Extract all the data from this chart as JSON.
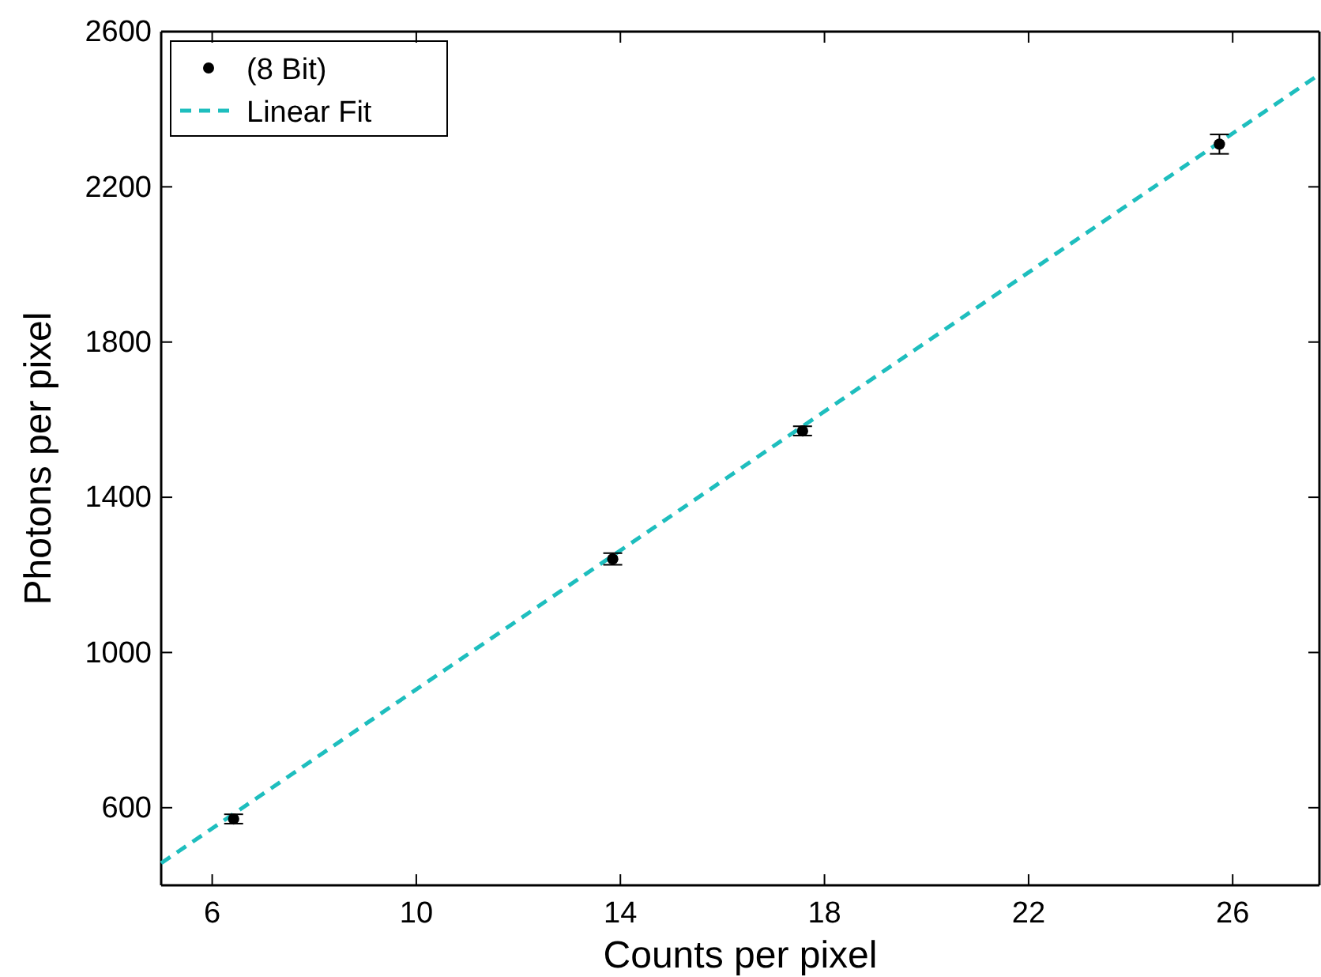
{
  "chart_data": {
    "type": "scatter",
    "xlabel": "Counts per pixel",
    "ylabel": "Photons per pixel",
    "xlim": [
      5,
      27.7
    ],
    "ylim": [
      400,
      2600
    ],
    "xticks": [
      6,
      10,
      14,
      18,
      22,
      26
    ],
    "yticks": [
      600,
      1000,
      1400,
      1800,
      2200,
      2600
    ],
    "grid": false,
    "legend": "top left",
    "series": [
      {
        "name": "(8 Bit)",
        "color": "#000000",
        "marker": "circle",
        "x": [
          6.42,
          13.85,
          17.57,
          25.74
        ],
        "values": [
          571,
          1241,
          1571,
          2310
        ],
        "errors": [
          12,
          15,
          12,
          25
        ]
      },
      {
        "name": "Linear Fit",
        "type": "line",
        "color": "#1ebebe",
        "line_style": "dashed",
        "marker": "none",
        "x": [
          5,
          27.7
        ],
        "values": [
          457,
          2490
        ]
      }
    ]
  }
}
